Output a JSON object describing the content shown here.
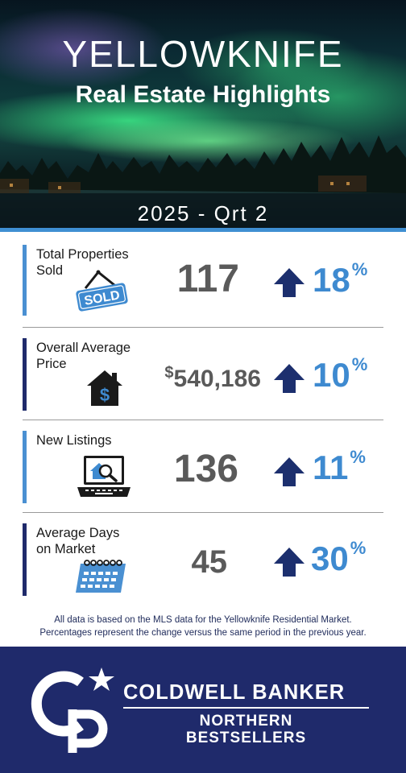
{
  "header": {
    "city": "YELLOWKNIFE",
    "subtitle": "Real Estate Highlights",
    "period": "2025 - Qrt 2"
  },
  "stats": [
    {
      "label_line1": "Total Properties",
      "label_line2": "Sold",
      "icon": "sold-sign-icon",
      "value": "117",
      "value_prefix": "",
      "change_direction": "up",
      "change": "18",
      "change_unit": "%"
    },
    {
      "label_line1": "Overall Average",
      "label_line2": "Price",
      "icon": "house-dollar-icon",
      "value": "540,186",
      "value_prefix": "$",
      "change_direction": "up",
      "change": "10",
      "change_unit": "%"
    },
    {
      "label_line1": "New Listings",
      "label_line2": "",
      "icon": "laptop-house-search-icon",
      "value": "136",
      "value_prefix": "",
      "change_direction": "up",
      "change": "11",
      "change_unit": "%"
    },
    {
      "label_line1": "Average Days",
      "label_line2": "on Market",
      "icon": "calendar-icon",
      "value": "45",
      "value_prefix": "",
      "change_direction": "up",
      "change": "30",
      "change_unit": "%"
    }
  ],
  "sign_text": "SOLD",
  "footnote": {
    "line1": "All data is based on the MLS data for the Yellowknife Residential Market.",
    "line2": "Percentages represent the change versus the same period in the previous year."
  },
  "brand": {
    "name": "COLDWELL BANKER",
    "office_line1": "NORTHERN",
    "office_line2": "BESTSELLERS",
    "logo_letters": "CB",
    "colors": {
      "navy": "#1f2a6b",
      "blue": "#3e8ad0",
      "arrow": "#1c2f6e"
    }
  }
}
